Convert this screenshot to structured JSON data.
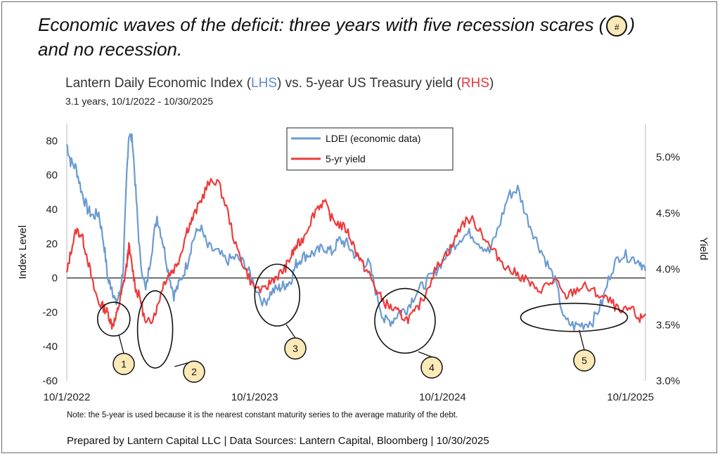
{
  "headline": {
    "line1_before": "Economic waves of the deficit: three years with five recession scares (",
    "badge": "#",
    "line1_after": ")",
    "line2": "and no recession."
  },
  "chart_data": {
    "type": "line",
    "title": {
      "prefix": "Lantern Daily Economic Index (",
      "lhs": "LHS",
      "middle": ") vs. 5-year US Treasury yield (",
      "rhs": "RHS",
      "suffix": ")"
    },
    "subtitle": "3.1 years, 10/1/2022 - 10/30/2025",
    "ylabel_left": "Index Level",
    "ylabel_right": "Yield",
    "ylim_left": [
      -60,
      90
    ],
    "ylim_right": [
      3.0,
      5.3
    ],
    "yticks_left": [
      "80",
      "60",
      "40",
      "20",
      "0",
      "-20",
      "-40",
      "-60"
    ],
    "yticks_left_values": [
      80,
      60,
      40,
      20,
      0,
      -20,
      -40,
      -60
    ],
    "yticks_right": [
      "5.0%",
      "4.5%",
      "4.0%",
      "3.5%",
      "3.0%"
    ],
    "yticks_right_values": [
      5.0,
      4.5,
      4.0,
      3.5,
      3.0
    ],
    "xlim": [
      2022.75,
      2025.83
    ],
    "xticks": [
      "10/1/2022",
      "10/1/2023",
      "10/1/2024",
      "10/1/2025"
    ],
    "xticks_values": [
      2022.75,
      2023.75,
      2024.75,
      2025.75
    ],
    "legend": [
      "LDEI (economic data)",
      "5-yr yield"
    ],
    "colors": {
      "ldei": "#6a9bd1",
      "yield": "#ee3b3b",
      "zero_line": "#222222"
    },
    "series": [
      {
        "name": "LDEI (economic data)",
        "axis": "left",
        "x": [
          2022.75,
          2022.77,
          2022.8,
          2022.83,
          2022.86,
          2022.89,
          2022.92,
          2022.95,
          2022.97,
          2022.99,
          2023.01,
          2023.03,
          2023.05,
          2023.07,
          2023.08,
          2023.1,
          2023.12,
          2023.14,
          2023.17,
          2023.2,
          2023.23,
          2023.26,
          2023.29,
          2023.32,
          2023.35,
          2023.39,
          2023.42,
          2023.46,
          2023.5,
          2023.55,
          2023.6,
          2023.65,
          2023.7,
          2023.74,
          2023.8,
          2023.84,
          2023.88,
          2023.91,
          2023.94,
          2023.97,
          2024.0,
          2024.04,
          2024.08,
          2024.12,
          2024.16,
          2024.2,
          2024.24,
          2024.28,
          2024.32,
          2024.36,
          2024.4,
          2024.44,
          2024.48,
          2024.52,
          2024.56,
          2024.6,
          2024.65,
          2024.7,
          2024.75,
          2024.8,
          2024.85,
          2024.9,
          2024.95,
          2025.0,
          2025.05,
          2025.1,
          2025.15,
          2025.2,
          2025.25,
          2025.3,
          2025.35,
          2025.4,
          2025.45,
          2025.5,
          2025.55,
          2025.6,
          2025.65,
          2025.7,
          2025.75,
          2025.8,
          2025.83
        ],
        "values": [
          78,
          68,
          64,
          50,
          40,
          36,
          38,
          18,
          -2,
          -5,
          -15,
          -10,
          5,
          62,
          84,
          80,
          45,
          12,
          -8,
          15,
          36,
          22,
          4,
          -10,
          -3,
          8,
          22,
          30,
          18,
          15,
          10,
          12,
          8,
          -2,
          -15,
          -8,
          -6,
          -4,
          -2,
          8,
          12,
          14,
          15,
          18,
          15,
          22,
          20,
          14,
          10,
          8,
          -10,
          -25,
          -25,
          -20,
          -18,
          -10,
          -4,
          2,
          10,
          18,
          24,
          26,
          20,
          15,
          30,
          48,
          52,
          35,
          22,
          10,
          -2,
          -25,
          -28,
          -27,
          -25,
          -14,
          5,
          14,
          12,
          10,
          4
        ]
      },
      {
        "name": "5-yr yield",
        "axis": "right",
        "x": [
          2022.75,
          2022.77,
          2022.8,
          2022.83,
          2022.86,
          2022.89,
          2022.92,
          2022.95,
          2022.97,
          2022.99,
          2023.01,
          2023.03,
          2023.05,
          2023.07,
          2023.08,
          2023.1,
          2023.12,
          2023.14,
          2023.17,
          2023.2,
          2023.23,
          2023.26,
          2023.29,
          2023.32,
          2023.35,
          2023.39,
          2023.42,
          2023.46,
          2023.5,
          2023.55,
          2023.6,
          2023.65,
          2023.7,
          2023.74,
          2023.8,
          2023.84,
          2023.88,
          2023.91,
          2023.94,
          2023.97,
          2024.0,
          2024.04,
          2024.08,
          2024.12,
          2024.16,
          2024.2,
          2024.24,
          2024.28,
          2024.32,
          2024.36,
          2024.4,
          2024.44,
          2024.48,
          2024.52,
          2024.56,
          2024.6,
          2024.65,
          2024.7,
          2024.75,
          2024.8,
          2024.85,
          2024.9,
          2024.95,
          2025.0,
          2025.05,
          2025.1,
          2025.15,
          2025.2,
          2025.25,
          2025.3,
          2025.35,
          2025.4,
          2025.45,
          2025.5,
          2025.55,
          2025.6,
          2025.65,
          2025.7,
          2025.75,
          2025.8,
          2025.83
        ],
        "values": [
          3.95,
          4.15,
          4.35,
          4.3,
          4.1,
          3.85,
          3.7,
          3.65,
          3.6,
          3.5,
          3.55,
          3.7,
          3.85,
          4.05,
          4.2,
          4.0,
          3.8,
          3.75,
          3.5,
          3.55,
          3.65,
          3.85,
          3.95,
          4.0,
          4.1,
          4.35,
          4.45,
          4.6,
          4.75,
          4.8,
          4.55,
          4.2,
          4.0,
          3.85,
          3.8,
          3.9,
          3.95,
          4.0,
          4.1,
          4.2,
          4.25,
          4.4,
          4.55,
          4.6,
          4.45,
          4.4,
          4.35,
          4.2,
          4.05,
          3.95,
          3.8,
          3.7,
          3.65,
          3.6,
          3.55,
          3.6,
          3.75,
          3.95,
          4.1,
          4.2,
          4.4,
          4.45,
          4.35,
          4.2,
          4.1,
          4.0,
          3.95,
          3.9,
          3.8,
          3.85,
          3.9,
          3.75,
          3.8,
          3.85,
          3.8,
          3.75,
          3.7,
          3.6,
          3.65,
          3.55,
          3.6
        ]
      }
    ],
    "callouts": [
      {
        "label": "1",
        "date": 2023.0,
        "ldei": -24
      },
      {
        "label": "2",
        "date": 2023.22,
        "ldei": -30
      },
      {
        "label": "3",
        "date": 2023.87,
        "ldei": -10
      },
      {
        "label": "4",
        "date": 2024.55,
        "ldei": -25
      },
      {
        "label": "5",
        "date": 2025.45,
        "ldei": -23
      }
    ]
  },
  "note": "Note: the 5-year is used because it is the nearest constant maturity series to the average maturity of the debt.",
  "footer": "Prepared by Lantern Capital LLC | Data Sources: Lantern Capital, Bloomberg  | 10/30/2025"
}
